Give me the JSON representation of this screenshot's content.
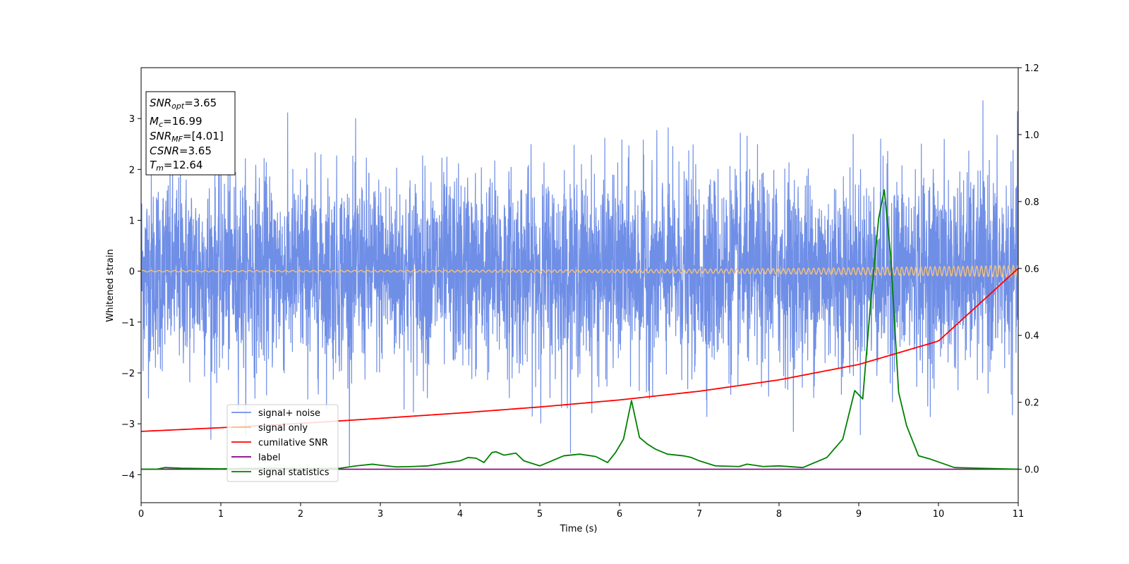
{
  "chart_data": {
    "type": "line",
    "title": "",
    "xlabel": "Time (s)",
    "ylabel": "Whitened strain",
    "xlim": [
      0,
      11
    ],
    "ylim_left": [
      -4.55,
      4.0
    ],
    "ylim_right": [
      -0.1,
      1.2
    ],
    "x_ticks": [
      "0",
      "1",
      "2",
      "3",
      "4",
      "5",
      "6",
      "7",
      "8",
      "9",
      "10",
      "11"
    ],
    "y_ticks_left": [
      "−4",
      "−3",
      "−2",
      "−1",
      "0",
      "1",
      "2",
      "3"
    ],
    "y_ticks_left_values": [
      -4,
      -3,
      -2,
      -1,
      0,
      1,
      2,
      3
    ],
    "y_ticks_right": [
      "0.0",
      "0.2",
      "0.4",
      "0.6",
      "0.8",
      "1.0",
      "1.2"
    ],
    "y_ticks_right_values": [
      0.0,
      0.2,
      0.4,
      0.6,
      0.8,
      1.0,
      1.2
    ],
    "grid": false,
    "legend_placement": "lower-left",
    "legend": [
      {
        "name": "signal+ noise",
        "color": "#6f8ee6"
      },
      {
        "name": "signal only",
        "color": "#f5c27a"
      },
      {
        "name": "cumilative SNR",
        "color": "#ff0000"
      },
      {
        "name": "label",
        "color": "#800080"
      },
      {
        "name": "signal statistics",
        "color": "#008000"
      }
    ],
    "annotation": {
      "snr_opt": {
        "base": "SNR",
        "sub": "opt",
        "value": "=3.65"
      },
      "mc": {
        "base": "M",
        "sub": "c",
        "value": "=16.99"
      },
      "snr_mf": {
        "base": "SNR",
        "sub": "MF",
        "value": "=[4.01]"
      },
      "csnr": {
        "base": "CSNR",
        "sub": "",
        "value": "=3.65"
      },
      "tm": {
        "base": "T",
        "sub": "m",
        "value": "=12.64"
      }
    },
    "series": [
      {
        "name": "signal+ noise",
        "axis": "left",
        "color": "#6f8ee6",
        "description": "whitened noisy strain, amplitude roughly within ±2.8 with extremes to 3.35 and −4.2",
        "ymin": -4.18,
        "ymax": 3.35
      },
      {
        "name": "signal only",
        "axis": "left",
        "color": "#f5c27a",
        "description": "chirp oscillation around 0, amplitude growing to about 0.1 near 11 s",
        "amplitude_end": 0.1
      },
      {
        "name": "cumilative SNR",
        "axis": "right",
        "x": [
          0,
          1,
          2,
          3,
          4,
          5,
          6,
          7,
          8,
          9,
          10,
          11
        ],
        "y": [
          0.113,
          0.124,
          0.137,
          0.152,
          0.168,
          0.186,
          0.207,
          0.233,
          0.267,
          0.313,
          0.383,
          0.6
        ]
      },
      {
        "name": "label",
        "axis": "right",
        "x": [
          0,
          11
        ],
        "y": [
          0.0,
          0.0
        ]
      },
      {
        "name": "signal statistics",
        "axis": "right",
        "x": [
          0,
          0.2,
          0.3,
          0.5,
          1.0,
          1.5,
          2.0,
          2.5,
          2.7,
          2.9,
          3.0,
          3.2,
          3.4,
          3.6,
          3.8,
          4.0,
          4.1,
          4.2,
          4.3,
          4.4,
          4.45,
          4.55,
          4.7,
          4.8,
          5.0,
          5.2,
          5.3,
          5.5,
          5.7,
          5.85,
          5.95,
          6.05,
          6.15,
          6.25,
          6.35,
          6.45,
          6.6,
          6.8,
          6.9,
          7.0,
          7.2,
          7.5,
          7.6,
          7.8,
          8.0,
          8.3,
          8.6,
          8.8,
          8.95,
          9.05,
          9.15,
          9.25,
          9.32,
          9.4,
          9.5,
          9.6,
          9.75,
          9.9,
          10.2,
          10.5,
          11.0
        ],
        "y": [
          0.0,
          0.0,
          0.005,
          0.003,
          0.001,
          0.003,
          0.002,
          0.003,
          0.01,
          0.015,
          0.012,
          0.007,
          0.008,
          0.01,
          0.018,
          0.025,
          0.035,
          0.033,
          0.02,
          0.05,
          0.052,
          0.042,
          0.048,
          0.025,
          0.01,
          0.03,
          0.04,
          0.045,
          0.038,
          0.02,
          0.05,
          0.09,
          0.205,
          0.095,
          0.075,
          0.06,
          0.045,
          0.04,
          0.035,
          0.025,
          0.01,
          0.008,
          0.015,
          0.008,
          0.01,
          0.005,
          0.035,
          0.09,
          0.235,
          0.21,
          0.5,
          0.75,
          0.835,
          0.64,
          0.23,
          0.13,
          0.04,
          0.03,
          0.005,
          0.003,
          0.0
        ]
      }
    ]
  }
}
